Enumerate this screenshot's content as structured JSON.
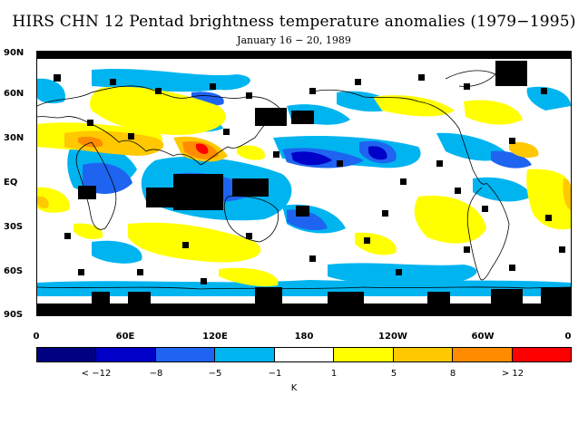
{
  "title": "HIRS CHN 12 Pentad brightness temperature anomalies (1979−1995)",
  "subtitle": "January 16 − 20, 1989",
  "lat_labels": [
    "90N",
    "60N",
    "30N",
    "EQ",
    "30S",
    "60S",
    "90S"
  ],
  "lon_labels": [
    "0",
    "60E",
    "120E",
    "180",
    "120W",
    "60W",
    "0"
  ],
  "colorbar": {
    "colors": [
      "#000080",
      "#0000c8",
      "#1e64f0",
      "#00b4f0",
      "#ffffff",
      "#ffff00",
      "#ffc800",
      "#ff8c00",
      "#ff0000"
    ],
    "labels": [
      "< −12",
      "−8",
      "−5",
      "−1",
      "1",
      "5",
      "8",
      "> 12"
    ],
    "unit": "K"
  },
  "map_colors": {
    "missing_data": "#000000",
    "coastline": "#000000"
  }
}
